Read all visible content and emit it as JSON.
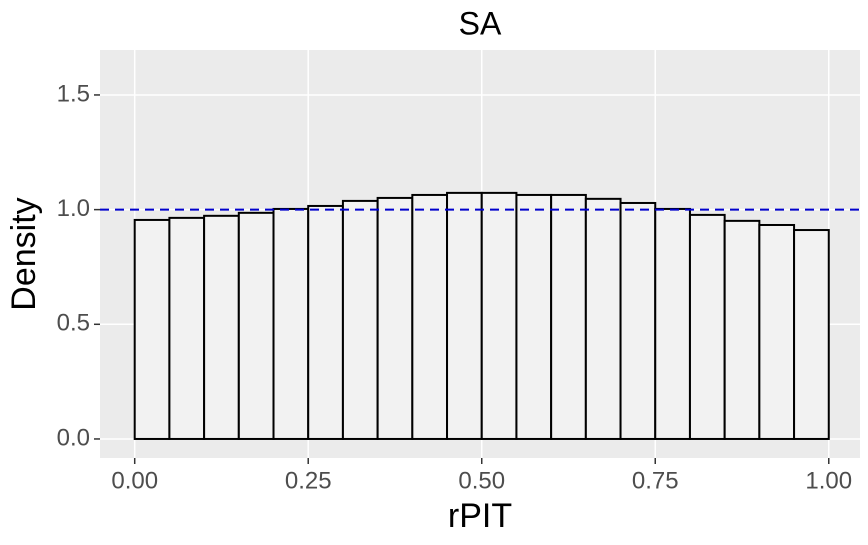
{
  "chart_data": {
    "type": "histogram",
    "title": "SA",
    "x_label": "rPIT",
    "y_label": "Density",
    "bins": [
      0,
      0.05,
      0.1,
      0.15,
      0.2,
      0.25,
      0.3,
      0.35,
      0.4,
      0.45,
      0.5,
      0.55,
      0.6,
      0.65,
      0.7,
      0.75,
      0.8,
      0.85,
      0.9,
      0.95,
      1.0
    ],
    "values": [
      0.955,
      0.964,
      0.973,
      0.986,
      1.003,
      1.016,
      1.038,
      1.051,
      1.064,
      1.073,
      1.073,
      1.064,
      1.064,
      1.047,
      1.029,
      1.003,
      0.977,
      0.951,
      0.933,
      0.911
    ],
    "color": "#f2f2f2",
    "edge_color": "#000000",
    "hline": 1,
    "hline_color": "#0000cc",
    "xlim": [
      -0.05,
      1.045
    ],
    "ylim": [
      -0.083,
      1.696
    ],
    "xticks": [
      {
        "value": 0,
        "label": "0.00"
      },
      0.25,
      {
        "value": 0.5,
        "label": "0.50"
      },
      0.75,
      {
        "value": 1,
        "label": "1.00"
      }
    ],
    "yticks": [
      {
        "value": 0,
        "label": "0.0"
      },
      {
        "value": 0.5,
        "label": "0.5"
      },
      {
        "value": 1,
        "label": "1.0"
      },
      1.5
    ],
    "grid": true
  }
}
